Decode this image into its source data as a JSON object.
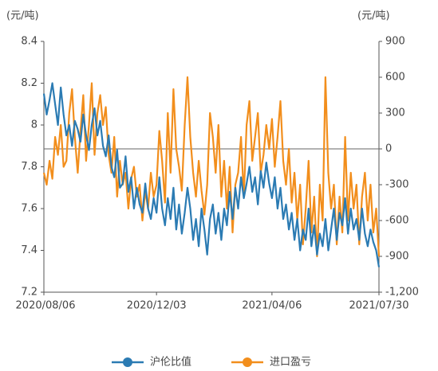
{
  "chart_data": {
    "type": "line",
    "y_unit_label": "(元/吨)",
    "y2_unit_label": "(元/吨)",
    "categories": [
      "2020/08/06",
      null,
      null,
      null,
      null,
      null,
      null,
      null,
      null,
      null,
      null,
      null,
      null,
      null,
      null,
      null,
      null,
      null,
      null,
      null,
      null,
      null,
      null,
      null,
      null,
      null,
      null,
      null,
      null,
      null,
      null,
      null,
      null,
      null,
      null,
      null,
      null,
      null,
      null,
      null,
      "2020/12/03",
      null,
      null,
      null,
      null,
      null,
      null,
      null,
      null,
      null,
      null,
      null,
      null,
      null,
      null,
      null,
      null,
      null,
      null,
      null,
      null,
      null,
      null,
      null,
      null,
      null,
      null,
      null,
      null,
      null,
      null,
      null,
      null,
      null,
      null,
      null,
      null,
      null,
      null,
      null,
      null,
      "2021/04/06",
      null,
      null,
      null,
      null,
      null,
      null,
      null,
      null,
      null,
      null,
      null,
      null,
      null,
      null,
      null,
      null,
      null,
      null,
      null,
      null,
      null,
      null,
      null,
      null,
      null,
      null,
      null,
      null,
      null,
      null,
      null,
      null,
      null,
      null,
      null,
      null,
      null,
      "2021/07/30"
    ],
    "series": [
      {
        "name": "沪伦比值",
        "color": "#2b7bb3",
        "axis": "y",
        "values": [
          8.15,
          8.05,
          8.12,
          8.2,
          8.1,
          8.0,
          8.18,
          8.05,
          7.95,
          8.0,
          7.9,
          8.02,
          7.98,
          7.92,
          8.05,
          7.95,
          7.88,
          8.0,
          8.08,
          7.95,
          8.02,
          7.9,
          7.85,
          7.95,
          7.8,
          7.75,
          7.88,
          7.7,
          7.72,
          7.85,
          7.68,
          7.75,
          7.6,
          7.7,
          7.62,
          7.58,
          7.72,
          7.6,
          7.55,
          7.65,
          7.58,
          7.75,
          7.6,
          7.52,
          7.65,
          7.55,
          7.7,
          7.5,
          7.62,
          7.48,
          7.58,
          7.7,
          7.6,
          7.45,
          7.55,
          7.42,
          7.6,
          7.5,
          7.38,
          7.55,
          7.62,
          7.48,
          7.58,
          7.45,
          7.6,
          7.52,
          7.68,
          7.55,
          7.7,
          7.6,
          7.75,
          7.65,
          7.72,
          7.8,
          7.68,
          7.75,
          7.62,
          7.78,
          7.7,
          7.82,
          7.72,
          7.65,
          7.75,
          7.6,
          7.7,
          7.55,
          7.62,
          7.5,
          7.58,
          7.45,
          7.55,
          7.4,
          7.5,
          7.45,
          7.6,
          7.42,
          7.52,
          7.38,
          7.48,
          7.42,
          7.55,
          7.4,
          7.5,
          7.6,
          7.45,
          7.58,
          7.52,
          7.65,
          7.48,
          7.6,
          7.5,
          7.55,
          7.45,
          7.6,
          7.48,
          7.42,
          7.5,
          7.44,
          7.4,
          7.32
        ]
      },
      {
        "name": "进口盈亏",
        "color": "#f28e1c",
        "axis": "y2",
        "values": [
          -200,
          -300,
          -100,
          -250,
          100,
          -50,
          200,
          -150,
          -100,
          300,
          500,
          100,
          -200,
          150,
          450,
          -100,
          200,
          550,
          -50,
          300,
          450,
          200,
          350,
          -50,
          -200,
          100,
          -400,
          -100,
          -300,
          -200,
          -500,
          -250,
          -150,
          -400,
          -300,
          -600,
          -350,
          -500,
          -200,
          -400,
          -300,
          150,
          -100,
          -450,
          300,
          -200,
          500,
          0,
          -150,
          -350,
          200,
          600,
          100,
          -200,
          -400,
          -100,
          -350,
          -550,
          -300,
          300,
          100,
          -200,
          200,
          -400,
          -100,
          -500,
          -150,
          -700,
          -300,
          -200,
          100,
          -400,
          200,
          400,
          -100,
          100,
          300,
          -200,
          -50,
          200,
          0,
          250,
          -150,
          100,
          400,
          -100,
          -300,
          0,
          -450,
          -200,
          -600,
          -300,
          -800,
          -500,
          -100,
          -700,
          -400,
          -900,
          -300,
          -600,
          600,
          -200,
          -500,
          -300,
          -800,
          -400,
          -700,
          100,
          -600,
          -200,
          -500,
          -300,
          -800,
          -400,
          -200,
          -600,
          -300,
          -700,
          -500,
          -900
        ]
      }
    ],
    "ylim": [
      7.2,
      8.4
    ],
    "yticks": [
      8.4,
      8.2,
      8,
      7.8,
      7.6,
      7.4,
      7.2
    ],
    "y2lim": [
      -1200,
      900
    ],
    "y2ticks": [
      900,
      600,
      300,
      0,
      -300,
      -600,
      -900,
      {
        "value": -1200,
        "label": "-1,200"
      }
    ],
    "legend": "bottom"
  }
}
